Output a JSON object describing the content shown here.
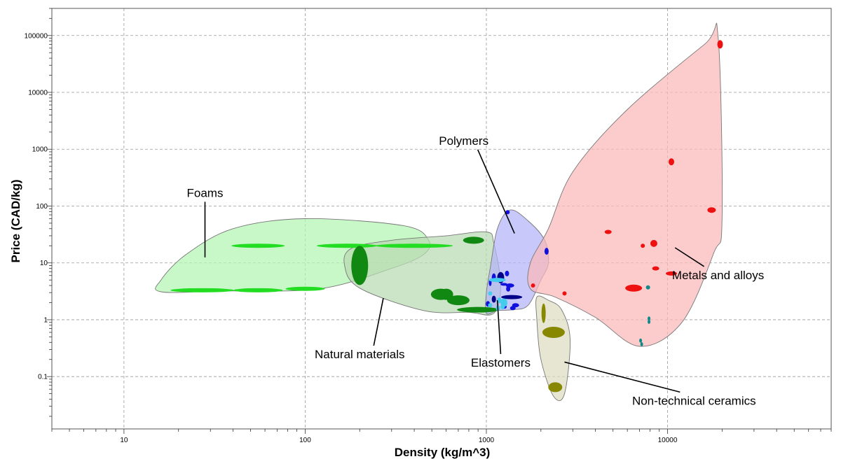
{
  "chart_data": {
    "type": "scatter",
    "title": "",
    "xlabel": "Density (kg/m^3)",
    "ylabel": "Price (CAD/kg)",
    "xscale": "log",
    "yscale": "log",
    "xlim": [
      4,
      80000
    ],
    "ylim": [
      0.012,
      300000
    ],
    "grid": true,
    "x_ticks": [
      10,
      100,
      1000,
      10000
    ],
    "x_tick_labels": [
      "10",
      "100",
      "1000",
      "10000"
    ],
    "y_ticks": [
      0.1,
      1,
      10,
      100,
      1000,
      10000,
      100000
    ],
    "y_tick_labels": [
      "0.1",
      "1",
      "10",
      "100",
      "1000",
      "10000",
      "100000"
    ],
    "colors": {
      "foams_fill": "#b3f5b3",
      "foams_point": "#22dd22",
      "natural_fill": "#b9d9b1",
      "natural_point": "#118811",
      "polymers_fill": "#b3b3f8",
      "polymers_point": "#1111dd",
      "elastomers_point": "#44ccee",
      "metals_fill": "#fbb9b9",
      "metals_point": "#ee1111",
      "ceramics_fill": "#dcdcc0",
      "ceramics_point": "#888800",
      "teal_point": "#118888",
      "navy_point": "#000088"
    },
    "groups": [
      {
        "name": "Foams",
        "color_key": "foams_fill",
        "envelope": [
          [
            16,
            3.1
          ],
          [
            35,
            3.2
          ],
          [
            120,
            3.5
          ],
          [
            300,
            8
          ],
          [
            450,
            14
          ],
          [
            480,
            25
          ],
          [
            350,
            45
          ],
          [
            100,
            60
          ],
          [
            40,
            40
          ],
          [
            22,
            14
          ],
          [
            16,
            5
          ]
        ],
        "label_at": [
          28,
          145
        ],
        "arrow_to": [
          28,
          12.5
        ]
      },
      {
        "name": "Natural materials",
        "color_key": "natural_fill",
        "envelope": [
          [
            200,
            3.6
          ],
          [
            450,
            1.45
          ],
          [
            800,
            1.35
          ],
          [
            1100,
            1.3
          ],
          [
            1200,
            4
          ],
          [
            1100,
            22
          ],
          [
            1000,
            35
          ],
          [
            600,
            30
          ],
          [
            300,
            25
          ],
          [
            180,
            18
          ],
          [
            165,
            9
          ]
        ],
        "label_at": [
          200,
          0.21
        ],
        "arrow_to": [
          270,
          2.4
        ]
      },
      {
        "name": "Polymers",
        "color_key": "polymers_fill",
        "envelope": [
          [
            1000,
            1.3
          ],
          [
            1150,
            1.45
          ],
          [
            1400,
            1.5
          ],
          [
            1700,
            1.8
          ],
          [
            2000,
            5
          ],
          [
            2200,
            10
          ],
          [
            2100,
            25
          ],
          [
            1700,
            55
          ],
          [
            1350,
            85
          ],
          [
            1150,
            40
          ],
          [
            1050,
            8
          ],
          [
            1000,
            3
          ]
        ],
        "label_at": [
          750,
          1200
        ],
        "arrow_to": [
          1430,
          33
        ]
      },
      {
        "name": "Elastomers",
        "color_key": "polymers_fill",
        "envelope": [],
        "label_at": [
          1200,
          0.15
        ],
        "arrow_to": [
          1150,
          2.2
        ]
      },
      {
        "name": "Metals and alloys",
        "color_key": "metals_fill",
        "envelope": [
          [
            1750,
            3.5
          ],
          [
            2400,
            2.5
          ],
          [
            4000,
            1.1
          ],
          [
            7000,
            0.34
          ],
          [
            12000,
            0.9
          ],
          [
            18000,
            15
          ],
          [
            20000,
            60
          ],
          [
            19000,
            95000
          ],
          [
            16000,
            70000
          ],
          [
            6000,
            5000
          ],
          [
            3000,
            400
          ],
          [
            2200,
            40
          ],
          [
            1750,
            10
          ]
        ],
        "label_at": [
          19000,
          5.2
        ],
        "arrow_to": [
          11000,
          18.5
        ]
      },
      {
        "name": "Non-technical ceramics",
        "color_key": "ceramics_fill",
        "envelope": [
          [
            1900,
            2.5
          ],
          [
            2200,
            2.2
          ],
          [
            2600,
            1.5
          ],
          [
            2900,
            0.45
          ],
          [
            2700,
            0.05
          ],
          [
            2350,
            0.045
          ],
          [
            2000,
            0.2
          ],
          [
            1900,
            1
          ]
        ],
        "label_at": [
          14000,
          0.032
        ],
        "arrow_to": [
          2700,
          0.18
        ]
      }
    ],
    "points": [
      {
        "group": "Foams",
        "color_key": "foams_point",
        "x": 55,
        "y": 20,
        "rx": 38,
        "ry": 3
      },
      {
        "group": "Foams",
        "color_key": "foams_point",
        "x": 170,
        "y": 20,
        "rx": 43,
        "ry": 3
      },
      {
        "group": "Foams",
        "color_key": "foams_point",
        "x": 400,
        "y": 20,
        "rx": 55,
        "ry": 3
      },
      {
        "group": "Foams",
        "color_key": "foams_point",
        "x": 27,
        "y": 3.3,
        "rx": 45,
        "ry": 3
      },
      {
        "group": "Foams",
        "color_key": "foams_point",
        "x": 55,
        "y": 3.3,
        "rx": 35,
        "ry": 3
      },
      {
        "group": "Foams",
        "color_key": "foams_point",
        "x": 100,
        "y": 3.5,
        "rx": 28,
        "ry": 3
      },
      {
        "group": "Natural materials",
        "color_key": "natural_point",
        "x": 200,
        "y": 9,
        "rx": 12,
        "ry": 28
      },
      {
        "group": "Natural materials",
        "color_key": "natural_point",
        "x": 850,
        "y": 25,
        "rx": 15,
        "ry": 5
      },
      {
        "group": "Natural materials",
        "color_key": "natural_point",
        "x": 560,
        "y": 2.8,
        "rx": 14,
        "ry": 8
      },
      {
        "group": "Natural materials",
        "color_key": "natural_point",
        "x": 600,
        "y": 2.8,
        "rx": 10,
        "ry": 8
      },
      {
        "group": "Natural materials",
        "color_key": "natural_point",
        "x": 700,
        "y": 2.2,
        "rx": 16,
        "ry": 7
      },
      {
        "group": "Natural materials",
        "color_key": "natural_point",
        "x": 900,
        "y": 1.5,
        "rx": 30,
        "ry": 4
      },
      {
        "group": "Polymers",
        "color_key": "polymers_point",
        "x": 1310,
        "y": 78,
        "rx": 3,
        "ry": 3
      },
      {
        "group": "Polymers",
        "color_key": "polymers_point",
        "x": 2150,
        "y": 16,
        "rx": 3,
        "ry": 5
      },
      {
        "group": "Polymers",
        "color_key": "navy_point",
        "x": 1200,
        "y": 5.5,
        "rx": 5,
        "ry": 8
      },
      {
        "group": "Polymers",
        "color_key": "navy_point",
        "x": 1380,
        "y": 2.5,
        "rx": 15,
        "ry": 3
      },
      {
        "group": "Polymers",
        "color_key": "polymers_point",
        "x": 1100,
        "y": 5.5,
        "rx": 3,
        "ry": 6
      },
      {
        "group": "Polymers",
        "color_key": "polymers_point",
        "x": 1300,
        "y": 6.5,
        "rx": 3,
        "ry": 4
      },
      {
        "group": "Polymers",
        "color_key": "polymers_point",
        "x": 1350,
        "y": 4,
        "rx": 6,
        "ry": 3
      },
      {
        "group": "Polymers",
        "color_key": "polymers_point",
        "x": 1050,
        "y": 4.5,
        "rx": 2,
        "ry": 5
      },
      {
        "group": "Polymers",
        "color_key": "polymers_point",
        "x": 1450,
        "y": 1.8,
        "rx": 5,
        "ry": 3
      },
      {
        "group": "Polymers",
        "color_key": "polymers_point",
        "x": 1020,
        "y": 1.9,
        "rx": 3,
        "ry": 4
      },
      {
        "group": "Polymers",
        "color_key": "polymers_point",
        "x": 1250,
        "y": 4.2,
        "rx": 5,
        "ry": 2
      },
      {
        "group": "Polymers",
        "color_key": "navy_point",
        "x": 1100,
        "y": 2.3,
        "rx": 3,
        "ry": 5
      },
      {
        "group": "Polymers",
        "color_key": "polymers_point",
        "x": 1400,
        "y": 1.6,
        "rx": 4,
        "ry": 3
      },
      {
        "group": "Polymers",
        "color_key": "polymers_point",
        "x": 1320,
        "y": 3.5,
        "rx": 3,
        "ry": 4
      },
      {
        "group": "Polymers",
        "color_key": "polymers_point",
        "x": 1260,
        "y": 1.7,
        "rx": 3,
        "ry": 3
      },
      {
        "group": "Elastomers",
        "color_key": "elastomers_point",
        "x": 1150,
        "y": 5,
        "rx": 12,
        "ry": 3
      },
      {
        "group": "Elastomers",
        "color_key": "elastomers_point",
        "x": 1250,
        "y": 2,
        "rx": 5,
        "ry": 6
      },
      {
        "group": "Elastomers",
        "color_key": "elastomers_point",
        "x": 1180,
        "y": 2.2,
        "rx": 3,
        "ry": 4
      },
      {
        "group": "Elastomers",
        "color_key": "elastomers_point",
        "x": 1050,
        "y": 1.8,
        "rx": 3,
        "ry": 3
      },
      {
        "group": "Elastomers",
        "color_key": "elastomers_point",
        "x": 1160,
        "y": 1.6,
        "rx": 3,
        "ry": 4
      },
      {
        "group": "Elastomers",
        "color_key": "elastomers_point",
        "x": 1230,
        "y": 1.7,
        "rx": 3,
        "ry": 4
      },
      {
        "group": "Elastomers",
        "color_key": "elastomers_point",
        "x": 1050,
        "y": 2.9,
        "rx": 3,
        "ry": 3
      },
      {
        "group": "Metals and alloys",
        "color_key": "metals_point",
        "x": 19500,
        "y": 70000,
        "rx": 4,
        "ry": 6
      },
      {
        "group": "Metals and alloys",
        "color_key": "metals_point",
        "x": 10500,
        "y": 600,
        "rx": 4,
        "ry": 5
      },
      {
        "group": "Metals and alloys",
        "color_key": "metals_point",
        "x": 17500,
        "y": 85,
        "rx": 6,
        "ry": 4
      },
      {
        "group": "Metals and alloys",
        "color_key": "metals_point",
        "x": 4700,
        "y": 35,
        "rx": 5,
        "ry": 3
      },
      {
        "group": "Metals and alloys",
        "color_key": "metals_point",
        "x": 8400,
        "y": 22,
        "rx": 5,
        "ry": 5
      },
      {
        "group": "Metals and alloys",
        "color_key": "metals_point",
        "x": 7300,
        "y": 20,
        "rx": 3,
        "ry": 3
      },
      {
        "group": "Metals and alloys",
        "color_key": "metals_point",
        "x": 8600,
        "y": 8,
        "rx": 5,
        "ry": 3
      },
      {
        "group": "Metals and alloys",
        "color_key": "metals_point",
        "x": 10500,
        "y": 6.5,
        "rx": 8,
        "ry": 3
      },
      {
        "group": "Metals and alloys",
        "color_key": "metals_point",
        "x": 6500,
        "y": 3.6,
        "rx": 12,
        "ry": 5
      },
      {
        "group": "Metals and alloys",
        "color_key": "metals_point",
        "x": 1810,
        "y": 4,
        "rx": 3,
        "ry": 3
      },
      {
        "group": "Metals and alloys",
        "color_key": "metals_point",
        "x": 2700,
        "y": 2.9,
        "rx": 3,
        "ry": 3
      },
      {
        "group": "Metals and alloys",
        "color_key": "teal_point",
        "x": 7800,
        "y": 3.7,
        "rx": 3,
        "ry": 3
      },
      {
        "group": "Metals and alloys",
        "color_key": "teal_point",
        "x": 7900,
        "y": 1.05,
        "rx": 2,
        "ry": 3
      },
      {
        "group": "Metals and alloys",
        "color_key": "teal_point",
        "x": 7900,
        "y": 0.92,
        "rx": 2,
        "ry": 3
      },
      {
        "group": "Metals and alloys",
        "color_key": "teal_point",
        "x": 7100,
        "y": 0.43,
        "rx": 2,
        "ry": 3
      },
      {
        "group": "Metals and alloys",
        "color_key": "teal_point",
        "x": 7200,
        "y": 0.37,
        "rx": 2,
        "ry": 3
      },
      {
        "group": "Non-technical ceramics",
        "color_key": "ceramics_point",
        "x": 2070,
        "y": 1.3,
        "rx": 3,
        "ry": 14
      },
      {
        "group": "Non-technical ceramics",
        "color_key": "ceramics_point",
        "x": 2350,
        "y": 0.6,
        "rx": 16,
        "ry": 8
      },
      {
        "group": "Non-technical ceramics",
        "color_key": "ceramics_point",
        "x": 2400,
        "y": 0.065,
        "rx": 10,
        "ry": 7
      }
    ]
  }
}
